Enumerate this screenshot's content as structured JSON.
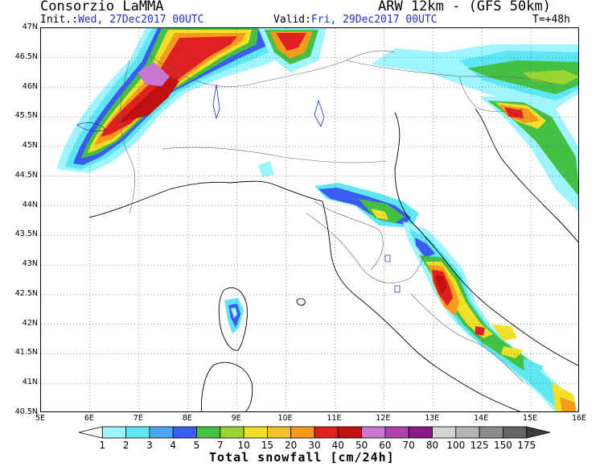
{
  "header": {
    "organization": "Consorzio LaMMA",
    "model": "ARW 12km - (GFS 50km)",
    "init_label": "Init.:",
    "init_value": "Wed, 27Dec2017 00UTC",
    "valid_label": "Valid:",
    "valid_value": "Fri, 29Dec2017 00UTC",
    "forecast_step": "T=+48h"
  },
  "map": {
    "lat_labels": [
      "47N",
      "46.5N",
      "46N",
      "45.5N",
      "45N",
      "44.5N",
      "44N",
      "43.5N",
      "43N",
      "42.5N",
      "42N",
      "41.5N",
      "41N",
      "40.5N"
    ],
    "lon_labels": [
      "5E",
      "6E",
      "7E",
      "8E",
      "9E",
      "10E",
      "11E",
      "12E",
      "13E",
      "14E",
      "15E",
      "16E"
    ],
    "lat_range": [
      40.5,
      47
    ],
    "lon_range": [
      5,
      16
    ],
    "grid": "dotted",
    "colors": {
      "1": "#9ff5ff",
      "2": "#5ee6f5",
      "5": "#44c044",
      "7": "#9ad430",
      "10": "#f0e02a",
      "15": "#f6c02a",
      "20": "#f89a1c",
      "30": "#e02020",
      "40": "#c01010",
      "50": "#c877d0"
    }
  },
  "colorbar": {
    "levels": [
      "1",
      "2",
      "3",
      "4",
      "5",
      "7",
      "10",
      "15",
      "20",
      "30",
      "40",
      "50",
      "60",
      "70",
      "80",
      "100",
      "125",
      "150",
      "175"
    ],
    "colors": [
      "#ffffff",
      "#9ff5ff",
      "#5ee6f5",
      "#4aa8f0",
      "#3a5cf0",
      "#44c044",
      "#9ad430",
      "#f0e02a",
      "#f6c02a",
      "#f89a1c",
      "#e02020",
      "#c01010",
      "#c877d0",
      "#b040b0",
      "#8a1a8a",
      "#d4d4d4",
      "#b4b4b4",
      "#8c8c8c",
      "#646464",
      "#3c3c3c"
    ],
    "title": "Total snowfall [cm/24h]"
  }
}
